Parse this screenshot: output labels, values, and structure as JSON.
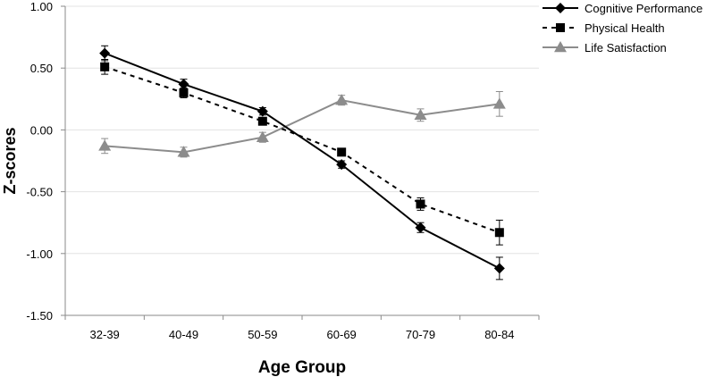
{
  "chart_data": {
    "type": "line",
    "title": "",
    "xlabel": "Age Group",
    "ylabel": "Z-scores",
    "categories": [
      "32-39",
      "40-49",
      "50-59",
      "60-69",
      "70-79",
      "80-84"
    ],
    "ylim": [
      -1.5,
      1.0
    ],
    "yticks": [
      1.0,
      0.5,
      0.0,
      -0.5,
      -1.0,
      -1.5
    ],
    "ytick_labels": [
      "1.00",
      "0.50",
      "0.00",
      "-0.50",
      "-1.00",
      "-1.50"
    ],
    "grid": true,
    "legend_position": "top-right",
    "series": [
      {
        "name": "Cognitive Performance",
        "values": [
          0.62,
          0.37,
          0.15,
          -0.28,
          -0.79,
          -1.12
        ],
        "errors": [
          0.06,
          0.04,
          0.03,
          0.03,
          0.04,
          0.09
        ],
        "color": "#000000",
        "line": "solid",
        "marker": "diamond"
      },
      {
        "name": "Physical Health",
        "values": [
          0.51,
          0.3,
          0.07,
          -0.18,
          -0.6,
          -0.83
        ],
        "errors": [
          0.06,
          0.04,
          0.03,
          0.03,
          0.05,
          0.1
        ],
        "color": "#000000",
        "line": "dashed",
        "marker": "square"
      },
      {
        "name": "Life Satisfaction",
        "values": [
          -0.13,
          -0.18,
          -0.06,
          0.24,
          0.12,
          0.21
        ],
        "errors": [
          0.06,
          0.04,
          0.04,
          0.04,
          0.05,
          0.1
        ],
        "color": "#8c8c8c",
        "line": "solid",
        "marker": "triangle"
      }
    ]
  }
}
